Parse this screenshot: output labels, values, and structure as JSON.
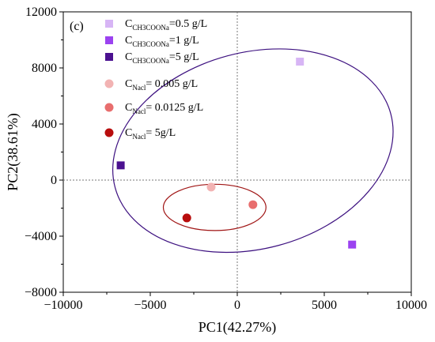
{
  "chart_data": {
    "type": "scatter",
    "panel_label": "(c)",
    "xlabel": "PC1(42.27%)",
    "ylabel": "PC2(38.61%)",
    "xlim": [
      -10000,
      10000
    ],
    "ylim": [
      -8000,
      12000
    ],
    "x_ticks": [
      "-10000",
      "-5000",
      "0",
      "5000",
      "10000"
    ],
    "x_tick_values": [
      -10000,
      -5000,
      0,
      5000,
      10000
    ],
    "y_ticks": [
      "-8000",
      "-4000",
      "0",
      "4000",
      "8000",
      "12000"
    ],
    "y_tick_values": [
      -8000,
      -4000,
      0,
      4000,
      8000,
      12000
    ],
    "grid": false,
    "reference_lines": {
      "x": 0,
      "y": 0,
      "style": "dotted"
    },
    "series": [
      {
        "marker": "square",
        "color": "#d7b5f5",
        "legend_main": "C",
        "legend_sub": "CH3COONa",
        "legend_tail": "=0.5 g/L",
        "points": [
          {
            "x": 3600,
            "y": 8450
          }
        ]
      },
      {
        "marker": "square",
        "color": "#9b42f0",
        "legend_main": "C",
        "legend_sub": "CH3COONa",
        "legend_tail": "=1 g/L",
        "points": [
          {
            "x": 6600,
            "y": -4600
          }
        ]
      },
      {
        "marker": "square",
        "color": "#4b1190",
        "legend_main": "C",
        "legend_sub": "CH3COONa",
        "legend_tail": "=5 g/L",
        "points": [
          {
            "x": -6700,
            "y": 1050
          }
        ]
      },
      {
        "marker": "circle",
        "color": "#f2b3b3",
        "legend_main": "C",
        "legend_sub": "Nacl",
        "legend_tail": "= 0.005 g/L",
        "points": [
          {
            "x": -1500,
            "y": -500
          }
        ]
      },
      {
        "marker": "circle",
        "color": "#e86e6e",
        "legend_main": "C",
        "legend_sub": "Nacl",
        "legend_tail": "= 0.0125 g/L",
        "points": [
          {
            "x": 900,
            "y": -1750
          }
        ]
      },
      {
        "marker": "circle",
        "color": "#b80d0d",
        "legend_main": "C",
        "legend_sub": "Nacl",
        "legend_tail": "= 5g/L",
        "points": [
          {
            "x": -2900,
            "y": -2700
          }
        ]
      }
    ],
    "ellipses": [
      {
        "color": "#3d1180",
        "cx": 900,
        "cy": 2100,
        "rx": 8200,
        "ry": 7000,
        "angle_deg": -15
      },
      {
        "color": "#a01515",
        "cx": -1300,
        "cy": -1950,
        "rx": 2950,
        "ry": 1650,
        "angle_deg": 0
      }
    ]
  }
}
